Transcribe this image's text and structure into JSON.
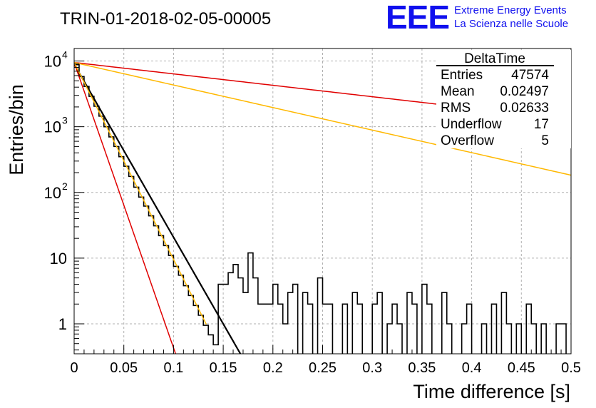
{
  "header": {
    "run_title": "TRIN-01-2018-02-05-00005",
    "logo_text": "EEE",
    "logo_line1": "Extreme Energy Events",
    "logo_line2": "La Scienza nelle Scuole"
  },
  "stats": {
    "name": "DeltaTime",
    "rows": [
      {
        "label": "Entries",
        "value": "47574"
      },
      {
        "label": "Mean",
        "value": "0.02497"
      },
      {
        "label": "RMS",
        "value": "0.02633"
      },
      {
        "label": "Underflow",
        "value": "17"
      },
      {
        "label": "Overflow",
        "value": "5"
      }
    ]
  },
  "colors": {
    "histogram": "#000000",
    "fit": "#000000",
    "red_curve": "#e00000",
    "orange_curve": "#ffb800",
    "grid": "#b0b0b0",
    "logo": "#1010ee"
  },
  "chart_data": {
    "type": "line",
    "title": "TRIN-01-2018-02-05-00005",
    "xlabel": "Time difference [s]",
    "ylabel": "Entries/bin",
    "xlim": [
      0,
      0.5
    ],
    "ylim": [
      0.35,
      15500
    ],
    "yscale": "log",
    "grid": true,
    "x_ticks": [
      "0",
      "0.05",
      "0.1",
      "0.15",
      "0.2",
      "0.25",
      "0.3",
      "0.35",
      "0.4",
      "0.45",
      "0.5"
    ],
    "y_ticks": [
      {
        "value": 1,
        "label": "1"
      },
      {
        "value": 10,
        "label": "10"
      },
      {
        "value": 100,
        "label": "10",
        "exp": "2"
      },
      {
        "value": 1000,
        "label": "10",
        "exp": "3"
      },
      {
        "value": 10000,
        "label": "10",
        "exp": "4"
      }
    ],
    "series": [
      {
        "kind": "histogram",
        "bin_width": 0.005,
        "values": [
          8800,
          5800,
          4100,
          2900,
          2050,
          1450,
          1000,
          700,
          500,
          350,
          250,
          175,
          120,
          85,
          62,
          44,
          31,
          22,
          15.5,
          11,
          7.5,
          5.5,
          3.8,
          2.7,
          1.9,
          1.35,
          0.95,
          0.68,
          0.48,
          4,
          4,
          6,
          8,
          5,
          3,
          12,
          5,
          2,
          2,
          2,
          4,
          2,
          1,
          3,
          4,
          0,
          3,
          2,
          0,
          5,
          2,
          2,
          0,
          0,
          2,
          0,
          3,
          2,
          0,
          0,
          2,
          3,
          0,
          1,
          2,
          1,
          0,
          3,
          2,
          0,
          4,
          2,
          0,
          0,
          3,
          1,
          0,
          0,
          1,
          2,
          0,
          0,
          1,
          0,
          2,
          0,
          3,
          1,
          0,
          1,
          0,
          2,
          1,
          0,
          1,
          0,
          0,
          1,
          1,
          0
        ]
      },
      {
        "kind": "exp",
        "color": "#000000",
        "A": 9000,
        "slope": 60.7,
        "x_end": 0.26,
        "width": 2.2
      },
      {
        "kind": "exp",
        "color": "#e00000",
        "A": 9500,
        "slope": 4.0,
        "x_end": 0.5,
        "width": 1.5
      },
      {
        "kind": "exp",
        "color": "#e00000",
        "A": 9500,
        "slope": 100.0,
        "x_end": 0.108,
        "width": 1.5
      },
      {
        "kind": "exp",
        "color": "#ffb800",
        "A": 9500,
        "slope": 7.9,
        "x_end": 0.5,
        "width": 1.5
      },
      {
        "kind": "exp",
        "color": "#ffb800",
        "A": 9500,
        "slope": 69.0,
        "x_end": 0.133,
        "width": 1.5
      }
    ]
  }
}
